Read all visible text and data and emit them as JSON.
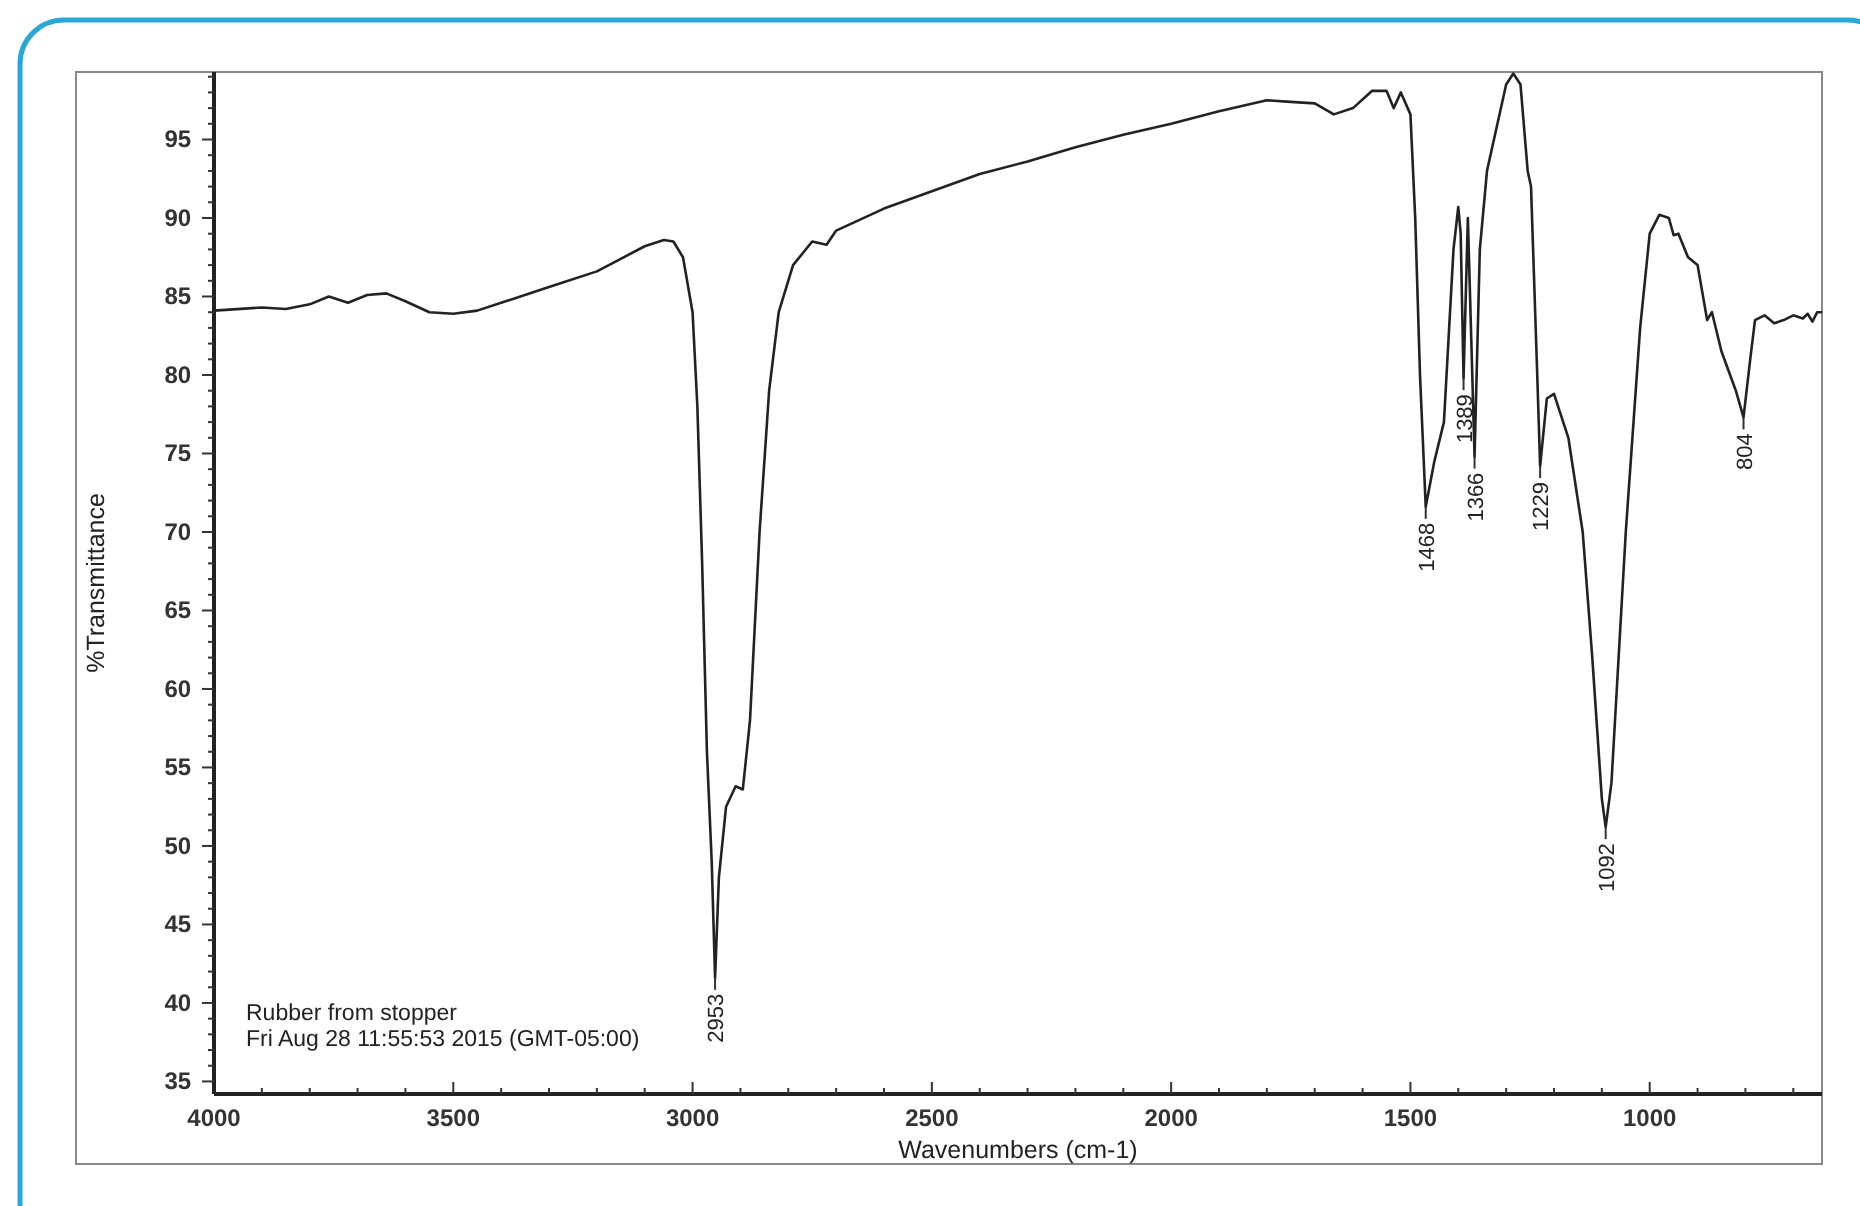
{
  "chart_data": {
    "type": "line",
    "xlabel": "Wavenumbers (cm-1)",
    "ylabel": "%Transmittance",
    "xlim": [
      4000,
      640
    ],
    "ylim": [
      34.2,
      99.3
    ],
    "xticks": [
      4000,
      {
        "value": 3900,
        "label": null
      },
      {
        "value": 3800,
        "label": null
      },
      {
        "value": 3700,
        "label": null
      },
      {
        "value": 3600,
        "label": null
      },
      3500,
      {
        "value": 3400,
        "label": null
      },
      {
        "value": 3300,
        "label": null
      },
      {
        "value": 3200,
        "label": null
      },
      {
        "value": 3100,
        "label": null
      },
      3000,
      {
        "value": 2900,
        "label": null
      },
      {
        "value": 2800,
        "label": null
      },
      {
        "value": 2700,
        "label": null
      },
      {
        "value": 2600,
        "label": null
      },
      2500,
      {
        "value": 2400,
        "label": null
      },
      {
        "value": 2300,
        "label": null
      },
      {
        "value": 2200,
        "label": null
      },
      {
        "value": 2100,
        "label": null
      },
      2000,
      {
        "value": 1900,
        "label": null
      },
      {
        "value": 1800,
        "label": null
      },
      {
        "value": 1700,
        "label": null
      },
      {
        "value": 1600,
        "label": null
      },
      1500,
      {
        "value": 1400,
        "label": null
      },
      {
        "value": 1300,
        "label": null
      },
      {
        "value": 1200,
        "label": null
      },
      {
        "value": 1100,
        "label": null
      },
      1000,
      {
        "value": 900,
        "label": null
      },
      {
        "value": 800,
        "label": null
      },
      {
        "value": 700,
        "label": null
      }
    ],
    "yticks": [
      35,
      {
        "value": 36,
        "label": null
      },
      {
        "value": 37,
        "label": null
      },
      {
        "value": 38,
        "label": null
      },
      {
        "value": 39,
        "label": null
      },
      40,
      {
        "value": 41,
        "label": null
      },
      {
        "value": 42,
        "label": null
      },
      {
        "value": 43,
        "label": null
      },
      {
        "value": 44,
        "label": null
      },
      45,
      {
        "value": 46,
        "label": null
      },
      {
        "value": 47,
        "label": null
      },
      {
        "value": 48,
        "label": null
      },
      {
        "value": 49,
        "label": null
      },
      50,
      {
        "value": 51,
        "label": null
      },
      {
        "value": 52,
        "label": null
      },
      {
        "value": 53,
        "label": null
      },
      {
        "value": 54,
        "label": null
      },
      55,
      {
        "value": 56,
        "label": null
      },
      {
        "value": 57,
        "label": null
      },
      {
        "value": 58,
        "label": null
      },
      {
        "value": 59,
        "label": null
      },
      60,
      {
        "value": 61,
        "label": null
      },
      {
        "value": 62,
        "label": null
      },
      {
        "value": 63,
        "label": null
      },
      {
        "value": 64,
        "label": null
      },
      65,
      {
        "value": 66,
        "label": null
      },
      {
        "value": 67,
        "label": null
      },
      {
        "value": 68,
        "label": null
      },
      {
        "value": 69,
        "label": null
      },
      70,
      {
        "value": 71,
        "label": null
      },
      {
        "value": 72,
        "label": null
      },
      {
        "value": 73,
        "label": null
      },
      {
        "value": 74,
        "label": null
      },
      75,
      {
        "value": 76,
        "label": null
      },
      {
        "value": 77,
        "label": null
      },
      {
        "value": 78,
        "label": null
      },
      {
        "value": 79,
        "label": null
      },
      80,
      {
        "value": 81,
        "label": null
      },
      {
        "value": 82,
        "label": null
      },
      {
        "value": 83,
        "label": null
      },
      {
        "value": 84,
        "label": null
      },
      85,
      {
        "value": 86,
        "label": null
      },
      {
        "value": 87,
        "label": null
      },
      {
        "value": 88,
        "label": null
      },
      {
        "value": 89,
        "label": null
      },
      90,
      {
        "value": 91,
        "label": null
      },
      {
        "value": 92,
        "label": null
      },
      {
        "value": 93,
        "label": null
      },
      {
        "value": 94,
        "label": null
      },
      95,
      {
        "value": 96,
        "label": null
      },
      {
        "value": 97,
        "label": null
      },
      {
        "value": 98,
        "label": null
      },
      {
        "value": 99,
        "label": null
      }
    ],
    "grid": false,
    "marker": "none",
    "line_style": "solid",
    "x": [
      4000,
      3900,
      3850,
      3800,
      3760,
      3720,
      3680,
      3640,
      3600,
      3550,
      3500,
      3450,
      3400,
      3300,
      3200,
      3150,
      3100,
      3060,
      3040,
      3020,
      3000,
      2990,
      2980,
      2970,
      2960,
      2953,
      2945,
      2930,
      2910,
      2895,
      2880,
      2860,
      2840,
      2820,
      2790,
      2750,
      2720,
      2700,
      2600,
      2500,
      2400,
      2300,
      2200,
      2100,
      2000,
      1900,
      1800,
      1750,
      1700,
      1660,
      1620,
      1580,
      1550,
      1535,
      1520,
      1500,
      1490,
      1480,
      1468,
      1450,
      1430,
      1410,
      1400,
      1395,
      1389,
      1380,
      1366,
      1355,
      1340,
      1300,
      1285,
      1270,
      1255,
      1248,
      1235,
      1229,
      1215,
      1200,
      1170,
      1140,
      1120,
      1100,
      1092,
      1080,
      1050,
      1020,
      1000,
      980,
      960,
      950,
      940,
      920,
      900,
      880,
      870,
      850,
      820,
      804,
      790,
      780,
      760,
      740,
      720,
      700,
      680,
      670,
      660,
      650,
      640
    ],
    "series": [
      {
        "color": "#222222",
        "values": [
          84.1,
          84.3,
          84.2,
          84.5,
          85.0,
          84.6,
          85.1,
          85.2,
          84.7,
          84.0,
          83.9,
          84.1,
          84.6,
          85.6,
          86.6,
          87.4,
          88.2,
          88.6,
          88.5,
          87.5,
          84,
          78,
          68,
          56,
          49,
          41.6,
          48,
          52.5,
          53.8,
          53.6,
          58,
          70,
          79,
          84,
          87,
          88.5,
          88.3,
          89.2,
          90.6,
          91.7,
          92.8,
          93.6,
          94.5,
          95.3,
          96.0,
          96.8,
          97.5,
          97.4,
          97.3,
          96.6,
          97.0,
          98.1,
          98.1,
          97.0,
          98.0,
          96.6,
          90,
          80,
          71.6,
          74.5,
          77,
          88,
          90.7,
          89,
          79.8,
          90,
          74.8,
          88,
          93,
          98.5,
          99.2,
          98.5,
          93,
          92,
          80,
          74.2,
          78.5,
          78.8,
          76,
          70,
          62,
          53,
          51.2,
          54,
          70,
          83,
          89,
          90.2,
          90,
          88.9,
          89,
          87.5,
          87,
          83.5,
          84,
          81.5,
          79,
          77.3,
          81,
          83.5,
          83.8,
          83.3,
          83.5,
          83.8,
          83.6,
          83.9,
          83.4,
          84,
          84
        ]
      }
    ],
    "annotations": [
      {
        "text": "2953",
        "x": 2953,
        "y": 41.6
      },
      {
        "text": "1468",
        "x": 1468,
        "y": 71.6
      },
      {
        "text": "1389",
        "x": 1389,
        "y": 79.8
      },
      {
        "text": "1366",
        "x": 1366,
        "y": 74.8
      },
      {
        "text": "1229",
        "x": 1229,
        "y": 74.2
      },
      {
        "text": "1092",
        "x": 1092,
        "y": 51.2
      },
      {
        "text": "804",
        "x": 804,
        "y": 77.3
      },
      "Rubber from stopper",
      "Fri Aug 28 11:55:53 2015 (GMT-05:00)"
    ]
  }
}
